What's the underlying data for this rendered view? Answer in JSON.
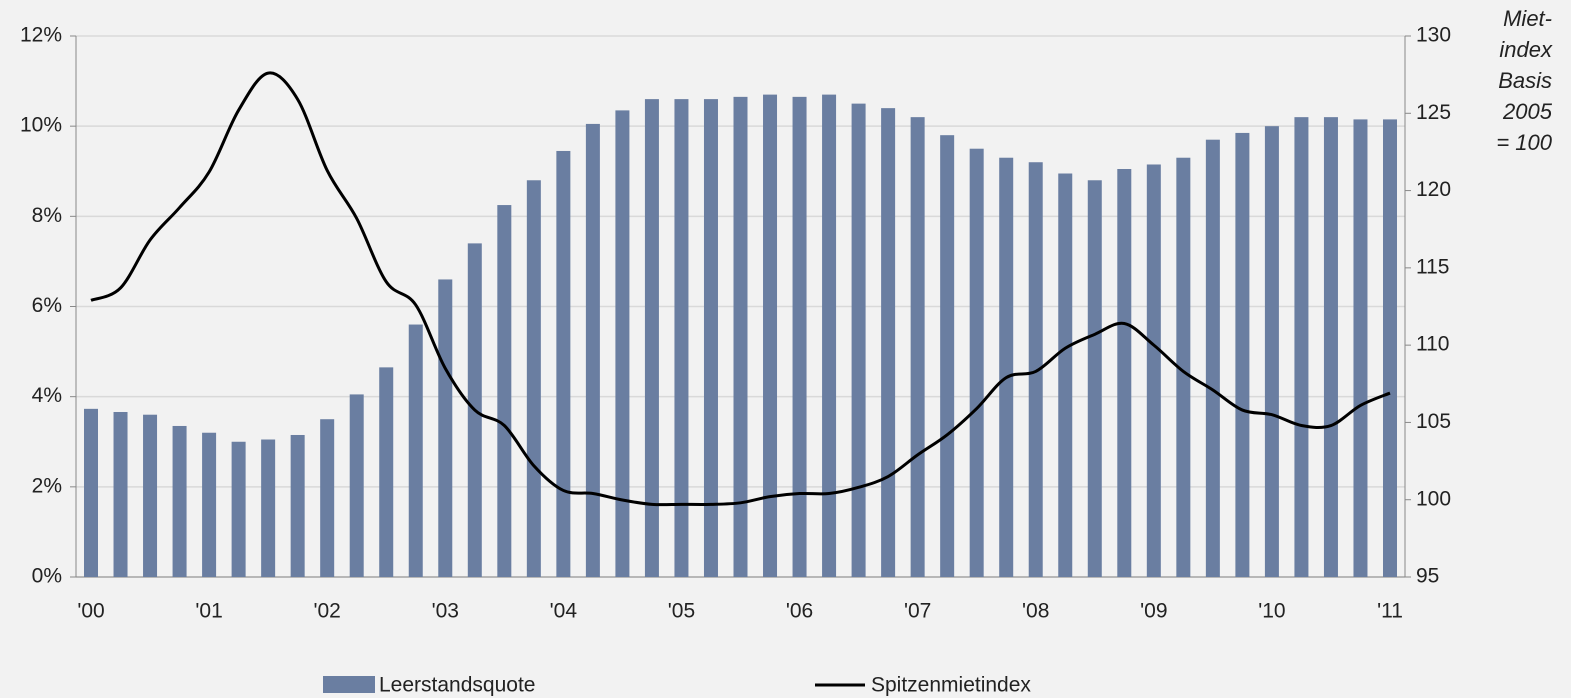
{
  "chart_data": {
    "type": "bar",
    "categories": [
      "'00",
      null,
      null,
      null,
      "'01",
      null,
      null,
      null,
      "'02",
      null,
      null,
      null,
      "'03",
      null,
      null,
      null,
      "'04",
      null,
      null,
      null,
      "'05",
      null,
      null,
      null,
      "'06",
      null,
      null,
      null,
      "'07",
      null,
      null,
      null,
      "'08",
      null,
      null,
      null,
      "'09",
      null,
      null,
      null,
      "'10",
      null,
      null,
      null,
      "'11"
    ],
    "series": [
      {
        "name": "Leerstandsquote",
        "type": "bar",
        "color": "#6a7ea1",
        "values": [
          3.73,
          3.66,
          3.6,
          3.35,
          3.2,
          3.0,
          3.05,
          3.15,
          3.5,
          4.05,
          4.65,
          5.6,
          6.6,
          7.4,
          8.25,
          8.8,
          9.45,
          10.05,
          10.35,
          10.6,
          10.6,
          10.6,
          10.65,
          10.7,
          10.65,
          10.7,
          10.5,
          10.4,
          10.2,
          9.8,
          9.5,
          9.3,
          9.2,
          8.95,
          8.8,
          9.05,
          9.15,
          9.3,
          9.7,
          9.85,
          10.0,
          10.2,
          10.2,
          10.15,
          10.15
        ]
      },
      {
        "name": "Spitzenmietindex",
        "type": "line",
        "axis": "y2",
        "color": "#000000",
        "values": [
          112.9,
          113.7,
          116.8,
          118.9,
          121.2,
          125.2,
          127.6,
          125.9,
          121.3,
          118.2,
          114.1,
          112.6,
          108.5,
          105.8,
          104.8,
          102.2,
          100.6,
          100.4,
          99.98,
          99.7,
          99.7,
          99.7,
          99.8,
          100.2,
          100.4,
          100.4,
          100.8,
          101.5,
          102.9,
          104.2,
          105.9,
          107.9,
          108.3,
          109.8,
          110.7,
          111.4,
          110.0,
          108.3,
          107.1,
          105.8,
          105.5,
          104.8,
          104.8,
          106.1,
          106.9
        ]
      }
    ],
    "ylim": [
      0,
      12
    ],
    "yticks": [
      {
        "value": 0,
        "label": "0%"
      },
      {
        "value": 2,
        "label": "2%"
      },
      {
        "value": 4,
        "label": "4%"
      },
      {
        "value": 6,
        "label": "6%"
      },
      {
        "value": 8,
        "label": "8%"
      },
      {
        "value": 10,
        "label": "10%"
      },
      {
        "value": 12,
        "label": "12%"
      }
    ],
    "y2lim": [
      95,
      130
    ],
    "y2ticks": [
      95,
      100,
      105,
      110,
      115,
      120,
      125,
      130
    ],
    "y2label": [
      "Miet-",
      "index",
      "Basis",
      "2005",
      "= 100"
    ],
    "grid": true,
    "legend": "bottom"
  }
}
